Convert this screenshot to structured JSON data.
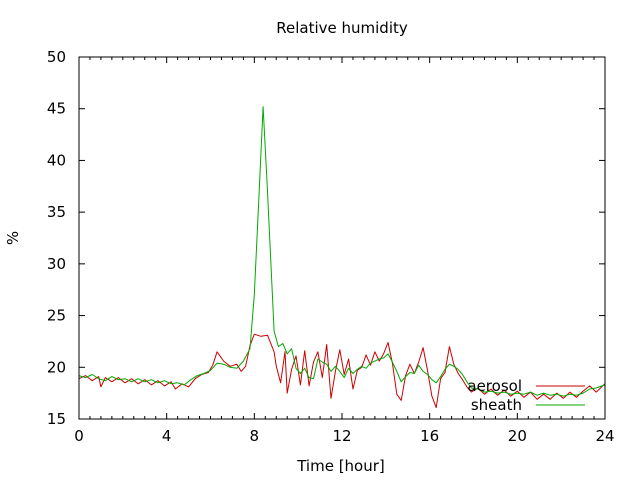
{
  "chart_data": {
    "type": "line",
    "title": "Relative humidity",
    "xlabel": "Time [hour]",
    "ylabel": "%",
    "xlim": [
      0,
      24
    ],
    "ylim": [
      15,
      50
    ],
    "xticks": [
      0,
      4,
      8,
      12,
      16,
      20,
      24
    ],
    "yticks": [
      15,
      20,
      25,
      30,
      35,
      40,
      45,
      50
    ],
    "grid": false,
    "legend_position": "bottom-right",
    "series": [
      {
        "name": "aerosol",
        "color": "#cc0000",
        "points": [
          [
            0,
            18.9
          ],
          [
            0.3,
            19.2
          ],
          [
            0.6,
            18.7
          ],
          [
            0.9,
            19.1
          ],
          [
            1.0,
            18.1
          ],
          [
            1.2,
            19.0
          ],
          [
            1.5,
            18.6
          ],
          [
            1.8,
            19.0
          ],
          [
            2.1,
            18.5
          ],
          [
            2.4,
            18.9
          ],
          [
            2.7,
            18.4
          ],
          [
            3.0,
            18.8
          ],
          [
            3.3,
            18.3
          ],
          [
            3.6,
            18.7
          ],
          [
            3.9,
            18.2
          ],
          [
            4.2,
            18.6
          ],
          [
            4.4,
            17.9
          ],
          [
            4.7,
            18.4
          ],
          [
            5.0,
            18.1
          ],
          [
            5.3,
            18.9
          ],
          [
            5.6,
            19.3
          ],
          [
            5.9,
            19.5
          ],
          [
            6.1,
            20.2
          ],
          [
            6.3,
            21.5
          ],
          [
            6.6,
            20.6
          ],
          [
            6.9,
            20.1
          ],
          [
            7.2,
            20.3
          ],
          [
            7.4,
            19.6
          ],
          [
            7.6,
            20.1
          ],
          [
            7.8,
            22.1
          ],
          [
            8.0,
            23.2
          ],
          [
            8.3,
            23.0
          ],
          [
            8.6,
            23.1
          ],
          [
            8.9,
            21.5
          ],
          [
            9.0,
            20.1
          ],
          [
            9.2,
            18.5
          ],
          [
            9.4,
            21.5
          ],
          [
            9.5,
            17.5
          ],
          [
            9.7,
            19.8
          ],
          [
            9.9,
            21.1
          ],
          [
            10.1,
            18.3
          ],
          [
            10.3,
            21.6
          ],
          [
            10.5,
            18.2
          ],
          [
            10.7,
            20.5
          ],
          [
            10.9,
            21.5
          ],
          [
            11.1,
            19.0
          ],
          [
            11.3,
            22.2
          ],
          [
            11.5,
            17.0
          ],
          [
            11.7,
            19.6
          ],
          [
            11.9,
            21.7
          ],
          [
            12.1,
            19.3
          ],
          [
            12.3,
            20.8
          ],
          [
            12.5,
            17.9
          ],
          [
            12.7,
            19.7
          ],
          [
            12.9,
            20.0
          ],
          [
            13.1,
            21.2
          ],
          [
            13.3,
            20.2
          ],
          [
            13.5,
            21.5
          ],
          [
            13.7,
            20.6
          ],
          [
            13.9,
            21.3
          ],
          [
            14.1,
            22.4
          ],
          [
            14.3,
            20.4
          ],
          [
            14.5,
            17.4
          ],
          [
            14.7,
            16.8
          ],
          [
            14.9,
            19.2
          ],
          [
            15.1,
            20.3
          ],
          [
            15.3,
            19.4
          ],
          [
            15.5,
            20.5
          ],
          [
            15.7,
            21.9
          ],
          [
            15.9,
            19.7
          ],
          [
            16.1,
            17.2
          ],
          [
            16.3,
            16.1
          ],
          [
            16.5,
            18.9
          ],
          [
            16.7,
            19.5
          ],
          [
            16.9,
            22.0
          ],
          [
            17.1,
            20.3
          ],
          [
            17.3,
            19.4
          ],
          [
            17.5,
            18.8
          ],
          [
            17.7,
            18.1
          ],
          [
            17.9,
            17.6
          ],
          [
            18.2,
            18.0
          ],
          [
            18.5,
            17.4
          ],
          [
            18.8,
            17.9
          ],
          [
            19.1,
            17.3
          ],
          [
            19.4,
            17.8
          ],
          [
            19.7,
            17.2
          ],
          [
            20.0,
            17.7
          ],
          [
            20.3,
            17.1
          ],
          [
            20.6,
            17.6
          ],
          [
            20.9,
            16.9
          ],
          [
            21.2,
            17.4
          ],
          [
            21.5,
            16.9
          ],
          [
            21.8,
            17.5
          ],
          [
            22.1,
            17.0
          ],
          [
            22.4,
            17.6
          ],
          [
            22.7,
            17.1
          ],
          [
            23.0,
            17.7
          ],
          [
            23.3,
            18.2
          ],
          [
            23.6,
            17.6
          ],
          [
            24.0,
            18.4
          ]
        ]
      },
      {
        "name": "sheath",
        "color": "#00aa00",
        "points": [
          [
            0,
            19.2
          ],
          [
            0.3,
            19.0
          ],
          [
            0.6,
            19.3
          ],
          [
            0.9,
            18.9
          ],
          [
            1.2,
            18.7
          ],
          [
            1.5,
            19.1
          ],
          [
            1.8,
            18.8
          ],
          [
            2.1,
            18.9
          ],
          [
            2.4,
            18.6
          ],
          [
            2.7,
            18.9
          ],
          [
            3.0,
            18.6
          ],
          [
            3.3,
            18.8
          ],
          [
            3.6,
            18.5
          ],
          [
            3.9,
            18.7
          ],
          [
            4.2,
            18.4
          ],
          [
            4.5,
            18.5
          ],
          [
            4.8,
            18.3
          ],
          [
            5.1,
            18.8
          ],
          [
            5.4,
            19.2
          ],
          [
            5.7,
            19.4
          ],
          [
            6.0,
            19.7
          ],
          [
            6.3,
            20.4
          ],
          [
            6.6,
            20.3
          ],
          [
            6.9,
            20.0
          ],
          [
            7.2,
            19.9
          ],
          [
            7.5,
            20.6
          ],
          [
            7.8,
            21.8
          ],
          [
            8.0,
            27.0
          ],
          [
            8.2,
            36.0
          ],
          [
            8.4,
            45.2
          ],
          [
            8.6,
            37.0
          ],
          [
            8.8,
            28.0
          ],
          [
            8.9,
            23.5
          ],
          [
            9.1,
            22.0
          ],
          [
            9.3,
            22.3
          ],
          [
            9.5,
            21.3
          ],
          [
            9.7,
            21.8
          ],
          [
            9.9,
            19.9
          ],
          [
            10.1,
            19.4
          ],
          [
            10.3,
            19.9
          ],
          [
            10.5,
            19.0
          ],
          [
            10.7,
            18.9
          ],
          [
            10.9,
            20.8
          ],
          [
            11.1,
            20.5
          ],
          [
            11.3,
            20.3
          ],
          [
            11.5,
            19.6
          ],
          [
            11.7,
            20.1
          ],
          [
            11.9,
            19.6
          ],
          [
            12.1,
            19.0
          ],
          [
            12.3,
            19.9
          ],
          [
            12.5,
            19.4
          ],
          [
            12.7,
            19.8
          ],
          [
            12.9,
            20.1
          ],
          [
            13.1,
            19.9
          ],
          [
            13.3,
            20.4
          ],
          [
            13.5,
            20.6
          ],
          [
            13.7,
            20.8
          ],
          [
            13.9,
            20.9
          ],
          [
            14.1,
            21.3
          ],
          [
            14.3,
            20.5
          ],
          [
            14.5,
            19.6
          ],
          [
            14.7,
            18.6
          ],
          [
            14.9,
            19.1
          ],
          [
            15.1,
            19.5
          ],
          [
            15.3,
            19.4
          ],
          [
            15.5,
            20.2
          ],
          [
            15.7,
            19.6
          ],
          [
            15.9,
            19.3
          ],
          [
            16.1,
            18.8
          ],
          [
            16.3,
            18.5
          ],
          [
            16.5,
            19.1
          ],
          [
            16.7,
            19.8
          ],
          [
            16.9,
            20.3
          ],
          [
            17.1,
            20.1
          ],
          [
            17.3,
            19.8
          ],
          [
            17.5,
            19.3
          ],
          [
            17.7,
            18.6
          ],
          [
            17.9,
            18.0
          ],
          [
            18.2,
            17.9
          ],
          [
            18.5,
            17.6
          ],
          [
            18.8,
            17.7
          ],
          [
            19.1,
            17.5
          ],
          [
            19.4,
            17.6
          ],
          [
            19.7,
            17.4
          ],
          [
            20.0,
            17.5
          ],
          [
            20.3,
            17.4
          ],
          [
            20.6,
            17.6
          ],
          [
            20.9,
            17.3
          ],
          [
            21.2,
            17.5
          ],
          [
            21.5,
            17.3
          ],
          [
            21.8,
            17.4
          ],
          [
            22.1,
            17.2
          ],
          [
            22.4,
            17.4
          ],
          [
            22.7,
            17.3
          ],
          [
            23.0,
            17.5
          ],
          [
            23.3,
            17.9
          ],
          [
            23.6,
            18.0
          ],
          [
            24.0,
            18.3
          ]
        ]
      }
    ]
  }
}
